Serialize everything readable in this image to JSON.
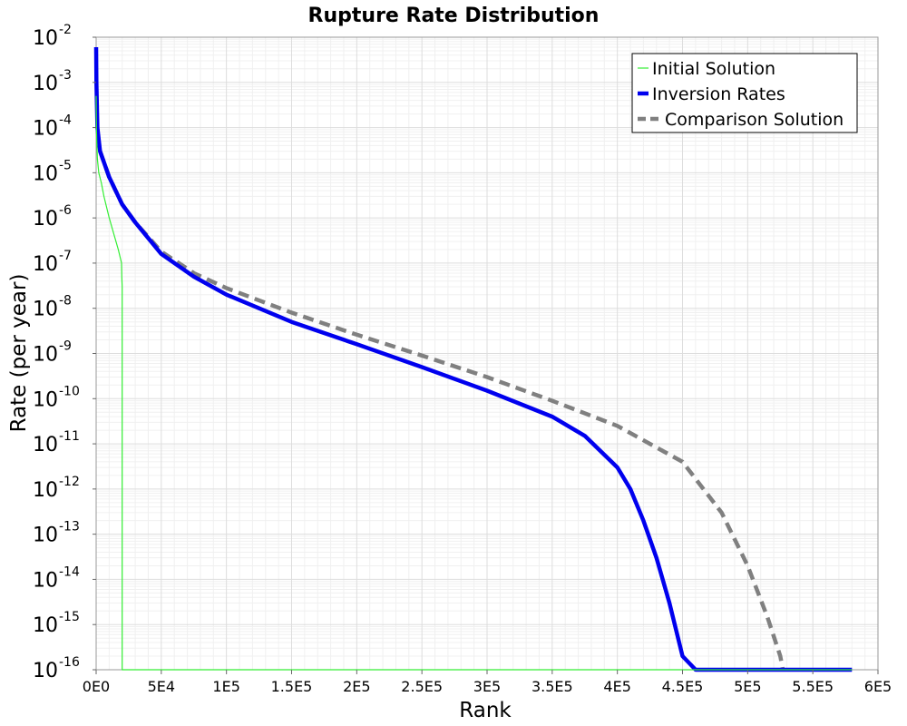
{
  "chart_data": {
    "type": "line",
    "title": "Rupture Rate Distribution",
    "xlabel": "Rank",
    "ylabel": "Rate (per year)",
    "xlim": [
      0,
      600000
    ],
    "ylim": [
      1e-16,
      0.01
    ],
    "yscale": "log",
    "grid": true,
    "legend_position": "top-right",
    "x_ticks": [
      {
        "value": 0,
        "label": "0E0"
      },
      {
        "value": 50000,
        "label": "5E4"
      },
      {
        "value": 100000,
        "label": "1E5"
      },
      {
        "value": 150000,
        "label": "1.5E5"
      },
      {
        "value": 200000,
        "label": "2E5"
      },
      {
        "value": 250000,
        "label": "2.5E5"
      },
      {
        "value": 300000,
        "label": "3E5"
      },
      {
        "value": 350000,
        "label": "3.5E5"
      },
      {
        "value": 400000,
        "label": "4E5"
      },
      {
        "value": 450000,
        "label": "4.5E5"
      },
      {
        "value": 500000,
        "label": "5E5"
      },
      {
        "value": 550000,
        "label": "5.5E5"
      },
      {
        "value": 600000,
        "label": "6E5"
      }
    ],
    "y_ticks": [
      {
        "exp": -2,
        "base": "10",
        "sup": "-2"
      },
      {
        "exp": -3,
        "base": "10",
        "sup": "-3"
      },
      {
        "exp": -4,
        "base": "10",
        "sup": "-4"
      },
      {
        "exp": -5,
        "base": "10",
        "sup": "-5"
      },
      {
        "exp": -6,
        "base": "10",
        "sup": "-6"
      },
      {
        "exp": -7,
        "base": "10",
        "sup": "-7"
      },
      {
        "exp": -8,
        "base": "10",
        "sup": "-8"
      },
      {
        "exp": -9,
        "base": "10",
        "sup": "-9"
      },
      {
        "exp": -10,
        "base": "10",
        "sup": "-10"
      },
      {
        "exp": -11,
        "base": "10",
        "sup": "-11"
      },
      {
        "exp": -12,
        "base": "10",
        "sup": "-12"
      },
      {
        "exp": -13,
        "base": "10",
        "sup": "-13"
      },
      {
        "exp": -14,
        "base": "10",
        "sup": "-14"
      },
      {
        "exp": -15,
        "base": "10",
        "sup": "-15"
      },
      {
        "exp": -16,
        "base": "10",
        "sup": "-16"
      }
    ],
    "series": [
      {
        "name": "Initial Solution",
        "color": "#33ee33",
        "style": "thin",
        "x": [
          0,
          200,
          500,
          1000,
          2000,
          4000,
          6000,
          10000,
          14000,
          17000,
          19500,
          19700,
          20000,
          20001,
          580000
        ],
        "y": [
          0.0005,
          0.0001,
          5e-05,
          2e-05,
          1e-05,
          6e-06,
          3e-06,
          1e-06,
          4e-07,
          2e-07,
          1e-07,
          5e-08,
          3e-08,
          1e-16,
          1e-16
        ]
      },
      {
        "name": "Inversion Rates",
        "color": "#0000ee",
        "style": "thick",
        "x": [
          0,
          200,
          1000,
          3000,
          10000,
          20000,
          30000,
          50000,
          75000,
          100000,
          150000,
          200000,
          250000,
          300000,
          350000,
          375000,
          400000,
          410000,
          420000,
          430000,
          440000,
          450000,
          460000,
          470000,
          470001,
          580000
        ],
        "y": [
          0.006,
          0.001,
          0.0001,
          3e-05,
          8e-06,
          2e-06,
          8e-07,
          1.6e-07,
          5e-08,
          2e-08,
          5e-09,
          1.6e-09,
          5e-10,
          1.5e-10,
          4e-11,
          1.5e-11,
          3e-12,
          1e-12,
          2e-13,
          3e-14,
          3e-15,
          2e-16,
          1e-16,
          1e-16,
          1e-16,
          1e-16
        ]
      },
      {
        "name": "Comparison Solution",
        "color": "#808080",
        "style": "dashed",
        "x": [
          3000,
          10000,
          20000,
          30000,
          50000,
          75000,
          100000,
          150000,
          200000,
          250000,
          300000,
          350000,
          400000,
          450000,
          480000,
          500000,
          515000,
          525000,
          527000
        ],
        "y": [
          3e-05,
          8e-06,
          2e-06,
          8e-07,
          1.8e-07,
          6e-08,
          2.8e-08,
          8e-09,
          2.6e-09,
          9e-10,
          3e-10,
          9e-11,
          2.5e-11,
          4e-12,
          3e-13,
          2e-14,
          1.5e-15,
          2e-16,
          1e-16
        ]
      }
    ]
  }
}
